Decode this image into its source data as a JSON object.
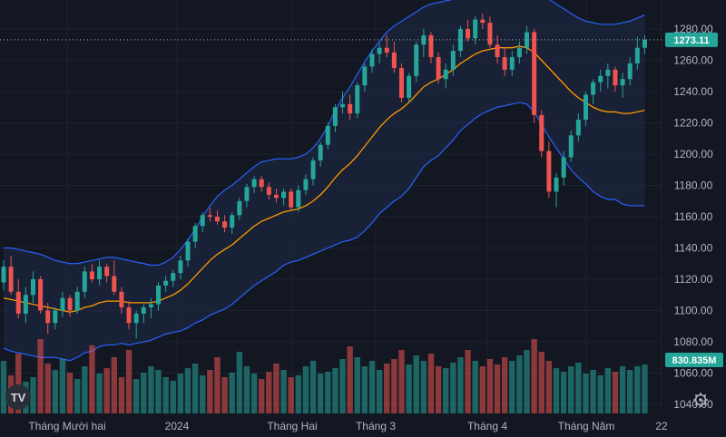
{
  "chart_data": {
    "type": "candlestick",
    "y_axis": {
      "range": [
        1030,
        1292
      ],
      "ticks": [
        1040,
        1060,
        1080,
        1100,
        1120,
        1140,
        1160,
        1180,
        1200,
        1220,
        1240,
        1260,
        1280
      ]
    },
    "x_axis": {
      "tick_labels": [
        "Tháng Mười hai",
        "2024",
        "Tháng Hai",
        "Tháng 3",
        "Tháng 4",
        "Tháng Năm",
        "22"
      ]
    },
    "last_price": {
      "value": 1273.11,
      "label": "1273.11",
      "color": "#26a69a"
    },
    "volume_label": {
      "text": "830.835M",
      "color": "#26a69a"
    },
    "colors": {
      "up": "#26a69a",
      "down": "#ef5350",
      "vol_up": "#26a69a",
      "vol_down": "#ef5350",
      "ma": "#ff9800",
      "bands": "#2962ff",
      "band_fill": "#1e2a45",
      "grid": "#1e222d",
      "background": "#131722"
    },
    "candles": [
      {
        "o": 1118,
        "h": 1132,
        "l": 1113,
        "c": 1128
      },
      {
        "o": 1128,
        "h": 1135,
        "l": 1110,
        "c": 1112
      },
      {
        "o": 1112,
        "h": 1120,
        "l": 1095,
        "c": 1098
      },
      {
        "o": 1098,
        "h": 1115,
        "l": 1092,
        "c": 1110
      },
      {
        "o": 1110,
        "h": 1125,
        "l": 1105,
        "c": 1120
      },
      {
        "o": 1120,
        "h": 1122,
        "l": 1098,
        "c": 1100
      },
      {
        "o": 1100,
        "h": 1105,
        "l": 1085,
        "c": 1092
      },
      {
        "o": 1092,
        "h": 1102,
        "l": 1088,
        "c": 1100
      },
      {
        "o": 1100,
        "h": 1112,
        "l": 1096,
        "c": 1108
      },
      {
        "o": 1108,
        "h": 1110,
        "l": 1096,
        "c": 1100
      },
      {
        "o": 1100,
        "h": 1115,
        "l": 1098,
        "c": 1112
      },
      {
        "o": 1112,
        "h": 1128,
        "l": 1108,
        "c": 1125
      },
      {
        "o": 1125,
        "h": 1130,
        "l": 1118,
        "c": 1120
      },
      {
        "o": 1120,
        "h": 1132,
        "l": 1116,
        "c": 1128
      },
      {
        "o": 1128,
        "h": 1130,
        "l": 1118,
        "c": 1122
      },
      {
        "o": 1122,
        "h": 1132,
        "l": 1110,
        "c": 1112
      },
      {
        "o": 1112,
        "h": 1115,
        "l": 1098,
        "c": 1102
      },
      {
        "o": 1102,
        "h": 1106,
        "l": 1088,
        "c": 1092
      },
      {
        "o": 1092,
        "h": 1100,
        "l": 1082,
        "c": 1098
      },
      {
        "o": 1098,
        "h": 1104,
        "l": 1092,
        "c": 1102
      },
      {
        "o": 1102,
        "h": 1108,
        "l": 1095,
        "c": 1104
      },
      {
        "o": 1104,
        "h": 1118,
        "l": 1100,
        "c": 1116
      },
      {
        "o": 1116,
        "h": 1122,
        "l": 1112,
        "c": 1119
      },
      {
        "o": 1119,
        "h": 1126,
        "l": 1115,
        "c": 1124
      },
      {
        "o": 1124,
        "h": 1135,
        "l": 1120,
        "c": 1132
      },
      {
        "o": 1132,
        "h": 1146,
        "l": 1128,
        "c": 1144
      },
      {
        "o": 1144,
        "h": 1156,
        "l": 1140,
        "c": 1154
      },
      {
        "o": 1154,
        "h": 1163,
        "l": 1150,
        "c": 1161
      },
      {
        "o": 1161,
        "h": 1166,
        "l": 1157,
        "c": 1160
      },
      {
        "o": 1160,
        "h": 1164,
        "l": 1155,
        "c": 1157
      },
      {
        "o": 1157,
        "h": 1161,
        "l": 1150,
        "c": 1153
      },
      {
        "o": 1153,
        "h": 1163,
        "l": 1149,
        "c": 1161
      },
      {
        "o": 1161,
        "h": 1172,
        "l": 1158,
        "c": 1170
      },
      {
        "o": 1170,
        "h": 1181,
        "l": 1166,
        "c": 1179
      },
      {
        "o": 1179,
        "h": 1186,
        "l": 1175,
        "c": 1184
      },
      {
        "o": 1184,
        "h": 1186,
        "l": 1176,
        "c": 1179
      },
      {
        "o": 1179,
        "h": 1182,
        "l": 1171,
        "c": 1174
      },
      {
        "o": 1174,
        "h": 1178,
        "l": 1169,
        "c": 1172
      },
      {
        "o": 1172,
        "h": 1178,
        "l": 1167,
        "c": 1176
      },
      {
        "o": 1176,
        "h": 1178,
        "l": 1164,
        "c": 1166
      },
      {
        "o": 1166,
        "h": 1180,
        "l": 1163,
        "c": 1177
      },
      {
        "o": 1177,
        "h": 1187,
        "l": 1174,
        "c": 1184
      },
      {
        "o": 1184,
        "h": 1198,
        "l": 1180,
        "c": 1196
      },
      {
        "o": 1196,
        "h": 1208,
        "l": 1192,
        "c": 1206
      },
      {
        "o": 1206,
        "h": 1220,
        "l": 1203,
        "c": 1218
      },
      {
        "o": 1218,
        "h": 1232,
        "l": 1214,
        "c": 1230
      },
      {
        "o": 1230,
        "h": 1240,
        "l": 1226,
        "c": 1232
      },
      {
        "o": 1232,
        "h": 1238,
        "l": 1222,
        "c": 1226
      },
      {
        "o": 1226,
        "h": 1246,
        "l": 1223,
        "c": 1244
      },
      {
        "o": 1244,
        "h": 1258,
        "l": 1240,
        "c": 1256
      },
      {
        "o": 1256,
        "h": 1267,
        "l": 1252,
        "c": 1264
      },
      {
        "o": 1264,
        "h": 1271,
        "l": 1258,
        "c": 1268
      },
      {
        "o": 1268,
        "h": 1276,
        "l": 1262,
        "c": 1265
      },
      {
        "o": 1265,
        "h": 1272,
        "l": 1252,
        "c": 1255
      },
      {
        "o": 1255,
        "h": 1258,
        "l": 1233,
        "c": 1236
      },
      {
        "o": 1236,
        "h": 1252,
        "l": 1233,
        "c": 1250
      },
      {
        "o": 1250,
        "h": 1272,
        "l": 1246,
        "c": 1270
      },
      {
        "o": 1270,
        "h": 1280,
        "l": 1262,
        "c": 1276
      },
      {
        "o": 1276,
        "h": 1278,
        "l": 1258,
        "c": 1262
      },
      {
        "o": 1262,
        "h": 1265,
        "l": 1245,
        "c": 1248
      },
      {
        "o": 1248,
        "h": 1258,
        "l": 1242,
        "c": 1254
      },
      {
        "o": 1254,
        "h": 1270,
        "l": 1250,
        "c": 1266
      },
      {
        "o": 1266,
        "h": 1282,
        "l": 1262,
        "c": 1280
      },
      {
        "o": 1280,
        "h": 1286,
        "l": 1272,
        "c": 1274
      },
      {
        "o": 1274,
        "h": 1288,
        "l": 1270,
        "c": 1286
      },
      {
        "o": 1286,
        "h": 1290,
        "l": 1280,
        "c": 1284
      },
      {
        "o": 1284,
        "h": 1288,
        "l": 1268,
        "c": 1270
      },
      {
        "o": 1270,
        "h": 1276,
        "l": 1258,
        "c": 1262
      },
      {
        "o": 1262,
        "h": 1268,
        "l": 1250,
        "c": 1254
      },
      {
        "o": 1254,
        "h": 1266,
        "l": 1250,
        "c": 1262
      },
      {
        "o": 1262,
        "h": 1272,
        "l": 1258,
        "c": 1268
      },
      {
        "o": 1268,
        "h": 1282,
        "l": 1264,
        "c": 1278
      },
      {
        "o": 1278,
        "h": 1280,
        "l": 1220,
        "c": 1225
      },
      {
        "o": 1225,
        "h": 1228,
        "l": 1198,
        "c": 1202
      },
      {
        "o": 1202,
        "h": 1208,
        "l": 1172,
        "c": 1176
      },
      {
        "o": 1176,
        "h": 1188,
        "l": 1166,
        "c": 1185
      },
      {
        "o": 1185,
        "h": 1202,
        "l": 1180,
        "c": 1198
      },
      {
        "o": 1198,
        "h": 1215,
        "l": 1195,
        "c": 1212
      },
      {
        "o": 1212,
        "h": 1226,
        "l": 1208,
        "c": 1222
      },
      {
        "o": 1222,
        "h": 1240,
        "l": 1218,
        "c": 1238
      },
      {
        "o": 1238,
        "h": 1248,
        "l": 1232,
        "c": 1246
      },
      {
        "o": 1246,
        "h": 1254,
        "l": 1240,
        "c": 1250
      },
      {
        "o": 1250,
        "h": 1258,
        "l": 1242,
        "c": 1254
      },
      {
        "o": 1254,
        "h": 1256,
        "l": 1240,
        "c": 1244
      },
      {
        "o": 1244,
        "h": 1252,
        "l": 1236,
        "c": 1248
      },
      {
        "o": 1248,
        "h": 1262,
        "l": 1244,
        "c": 1258
      },
      {
        "o": 1258,
        "h": 1275,
        "l": 1254,
        "c": 1268
      },
      {
        "o": 1268,
        "h": 1276,
        "l": 1264,
        "c": 1273.11
      }
    ],
    "ma": [
      1108,
      1107,
      1106,
      1105,
      1104,
      1103,
      1102,
      1101,
      1100,
      1099,
      1100,
      1102,
      1103,
      1105,
      1106,
      1106,
      1106,
      1105,
      1105,
      1105,
      1105,
      1106,
      1108,
      1110,
      1113,
      1117,
      1122,
      1127,
      1132,
      1136,
      1139,
      1142,
      1146,
      1150,
      1154,
      1157,
      1159,
      1161,
      1163,
      1164,
      1165,
      1167,
      1170,
      1174,
      1179,
      1185,
      1190,
      1194,
      1199,
      1205,
      1211,
      1217,
      1222,
      1226,
      1229,
      1233,
      1238,
      1243,
      1246,
      1248,
      1251,
      1254,
      1258,
      1261,
      1264,
      1266,
      1267,
      1268,
      1268,
      1268,
      1269,
      1268,
      1265,
      1260,
      1255,
      1250,
      1245,
      1240,
      1236,
      1233,
      1230,
      1228,
      1227,
      1227,
      1226,
      1226,
      1227,
      1228
    ],
    "bb_upper": [
      1140,
      1140,
      1139,
      1138,
      1137,
      1136,
      1134,
      1132,
      1131,
      1130,
      1130,
      1131,
      1132,
      1133,
      1134,
      1134,
      1133,
      1132,
      1131,
      1130,
      1129,
      1129,
      1131,
      1134,
      1139,
      1145,
      1152,
      1160,
      1167,
      1173,
      1177,
      1180,
      1184,
      1188,
      1192,
      1195,
      1196,
      1197,
      1197,
      1197,
      1198,
      1200,
      1204,
      1210,
      1218,
      1228,
      1236,
      1243,
      1251,
      1259,
      1266,
      1272,
      1278,
      1282,
      1285,
      1288,
      1291,
      1294,
      1296,
      1297,
      1298,
      1299,
      1301,
      1303,
      1305,
      1306,
      1306,
      1306,
      1305,
      1304,
      1305,
      1304,
      1303,
      1301,
      1299,
      1296,
      1293,
      1290,
      1287,
      1285,
      1284,
      1283,
      1283,
      1283,
      1284,
      1285,
      1287,
      1289
    ],
    "bb_lower": [
      1076,
      1074,
      1073,
      1072,
      1071,
      1070,
      1070,
      1070,
      1069,
      1068,
      1070,
      1073,
      1074,
      1077,
      1078,
      1078,
      1079,
      1078,
      1079,
      1080,
      1081,
      1083,
      1085,
      1086,
      1087,
      1089,
      1092,
      1094,
      1097,
      1099,
      1101,
      1104,
      1108,
      1112,
      1116,
      1119,
      1122,
      1125,
      1129,
      1131,
      1132,
      1134,
      1136,
      1138,
      1140,
      1142,
      1144,
      1145,
      1147,
      1151,
      1156,
      1162,
      1166,
      1170,
      1173,
      1178,
      1185,
      1192,
      1196,
      1199,
      1204,
      1209,
      1215,
      1219,
      1223,
      1226,
      1228,
      1230,
      1231,
      1232,
      1233,
      1232,
      1227,
      1219,
      1211,
      1204,
      1197,
      1190,
      1185,
      1181,
      1176,
      1173,
      1171,
      1171,
      1168,
      1167,
      1167,
      1167
    ],
    "volumes": [
      58,
      42,
      66,
      35,
      40,
      82,
      55,
      48,
      60,
      45,
      38,
      52,
      75,
      44,
      50,
      62,
      40,
      70,
      38,
      45,
      52,
      48,
      40,
      36,
      44,
      50,
      55,
      42,
      48,
      62,
      40,
      45,
      68,
      52,
      44,
      38,
      46,
      55,
      48,
      40,
      42,
      52,
      58,
      44,
      46,
      50,
      60,
      74,
      62,
      52,
      58,
      48,
      55,
      60,
      70,
      54,
      64,
      58,
      66,
      52,
      50,
      56,
      62,
      70,
      58,
      52,
      60,
      54,
      62,
      58,
      64,
      70,
      82,
      68,
      58,
      50,
      46,
      52,
      56,
      44,
      48,
      42,
      50,
      46,
      52,
      48,
      52,
      54
    ]
  }
}
